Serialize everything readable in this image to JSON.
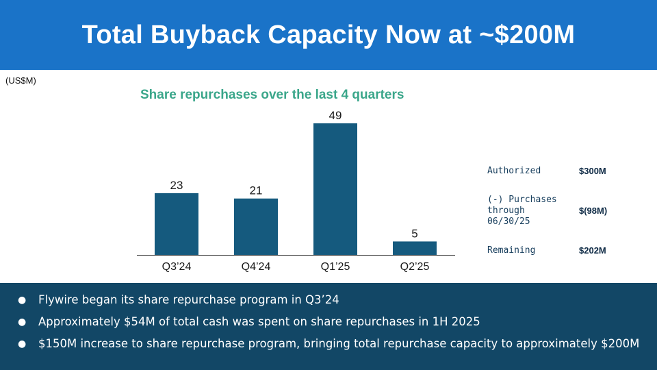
{
  "header": {
    "title": "Total Buyback Capacity Now at ~$200M"
  },
  "units_label": "(US$M)",
  "chart_title": "Share repurchases over the last 4 quarters",
  "chart_data": {
    "type": "bar",
    "title": "Share repurchases over the last 4 quarters",
    "ylabel": "US$M",
    "categories": [
      "Q3’24",
      "Q4’24",
      "Q1’25",
      "Q2’25"
    ],
    "values": [
      23,
      21,
      49,
      5
    ],
    "ylim": [
      0,
      49
    ],
    "grid": false,
    "bar_color": "#155a7e"
  },
  "authorization": [
    {
      "label": "Authorized",
      "value": "$300M"
    },
    {
      "label": "(-) Purchases\nthrough\n06/30/25",
      "value": "$(98M)"
    },
    {
      "label": "Remaining",
      "value": "$202M"
    }
  ],
  "bullets": [
    "Flywire began its share repurchase program in Q3’24",
    "Approximately $54M of total cash was spent on share repurchases in 1H 2025",
    "$150M increase to share repurchase program, bringing total repurchase capacity to approximately $200M"
  ],
  "colors": {
    "header_bg": "#1a73c8",
    "bottom_bg": "#124766",
    "title_green": "#3aa68a"
  }
}
